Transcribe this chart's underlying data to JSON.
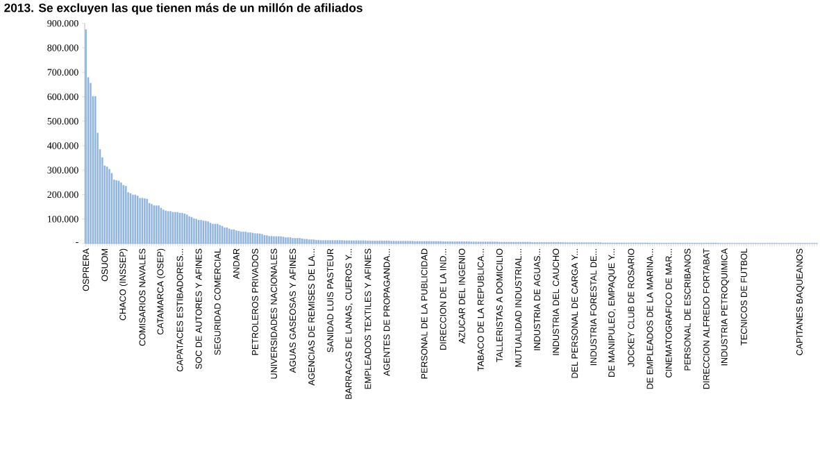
{
  "chart_data": {
    "type": "bar",
    "title": "2013. Se excluyen las que tienen más de un millón de afiliados",
    "categories": [
      "OSPRERA",
      null,
      null,
      null,
      null,
      null,
      null,
      null,
      "OSUOM",
      null,
      null,
      null,
      null,
      null,
      null,
      null,
      "CHACO (INSSEP)",
      null,
      null,
      null,
      null,
      null,
      null,
      null,
      "COMISARIOS NAVALES",
      null,
      null,
      null,
      null,
      null,
      null,
      null,
      "CATAMARCA (OSEP)",
      null,
      null,
      null,
      null,
      null,
      null,
      null,
      "CAPATACES  ESTIBADORES...",
      null,
      null,
      null,
      null,
      null,
      null,
      null,
      "SOC DE AUTORES Y AFINES",
      null,
      null,
      null,
      null,
      null,
      null,
      null,
      "SEGURIDAD COMERCIAL",
      null,
      null,
      null,
      null,
      null,
      null,
      null,
      "ANDAR",
      null,
      null,
      null,
      null,
      null,
      null,
      null,
      "PETROLEROS PRIVADOS",
      null,
      null,
      null,
      null,
      null,
      null,
      null,
      "UNIVERSIDADES NACIONALES",
      null,
      null,
      null,
      null,
      null,
      null,
      null,
      "AGUAS GASEOSAS Y AFINES",
      null,
      null,
      null,
      null,
      null,
      null,
      null,
      "AGENCIAS DE REMISES DE LA...",
      null,
      null,
      null,
      null,
      null,
      null,
      null,
      "SANIDAD LUIS PASTEUR",
      null,
      null,
      null,
      null,
      null,
      null,
      null,
      "BARRACAS DE LANAS, CUEROS Y...",
      null,
      null,
      null,
      null,
      null,
      null,
      null,
      "EMPLEADOS TEXTILES Y AFINES",
      null,
      null,
      null,
      null,
      null,
      null,
      null,
      "AGENTES DE PROPAGANDA...",
      null,
      null,
      null,
      null,
      null,
      null,
      null,
      null,
      null,
      null,
      null,
      null,
      null,
      null,
      null,
      "PERSONAL DE LA PUBLICIDAD",
      null,
      null,
      null,
      null,
      null,
      null,
      null,
      "DIRECCION DE LA IND...",
      null,
      null,
      null,
      null,
      null,
      null,
      null,
      "AZUCAR DEL INGENIO",
      null,
      null,
      null,
      null,
      null,
      null,
      null,
      "TABACO DE LA REPUBLICA...",
      null,
      null,
      null,
      null,
      null,
      null,
      null,
      "TALLERISTAS A DOMICILIO",
      null,
      null,
      null,
      null,
      null,
      null,
      null,
      "MUTUALIDAD INDUSTRIAL...",
      null,
      null,
      null,
      null,
      null,
      null,
      null,
      "INDUSTRIA DE  AGUAS...",
      null,
      null,
      null,
      null,
      null,
      null,
      null,
      "INDUSTRIA DEL  CAUCHO",
      null,
      null,
      null,
      null,
      null,
      null,
      null,
      "DEL PERSONAL DE  CARGA Y...",
      null,
      null,
      null,
      null,
      null,
      null,
      null,
      "INDUSTRIA FORESTAL DE...",
      null,
      null,
      null,
      null,
      null,
      null,
      null,
      "DE MANIPULEO, EMPAQUE Y...",
      null,
      null,
      null,
      null,
      null,
      null,
      null,
      "JOCKEY CLUB DE ROSARIO",
      null,
      null,
      null,
      null,
      null,
      null,
      null,
      "DE EMPLEADOS DE LA MARINA...",
      null,
      null,
      null,
      null,
      null,
      null,
      null,
      "CINEMATOGRAFICO DE MAR...",
      null,
      null,
      null,
      null,
      null,
      null,
      null,
      "PERSONAL DE ESCRIBANOS",
      null,
      null,
      null,
      null,
      null,
      null,
      null,
      "DIRECCION ALFREDO FORTABAT",
      null,
      null,
      null,
      null,
      null,
      null,
      null,
      "INDUSTRIA PETROQUIMICA",
      null,
      null,
      null,
      null,
      null,
      null,
      null,
      "TECNICOS DE FUTBOL",
      null,
      null,
      null,
      null,
      null,
      null,
      null,
      null,
      null,
      null,
      null,
      null,
      null,
      null,
      null,
      null,
      null,
      null,
      null,
      null,
      null,
      null,
      null,
      "CAPITANES BAQUEANOS",
      null,
      null,
      null,
      null,
      null,
      null,
      null
    ],
    "values": [
      875000,
      679000,
      656000,
      602000,
      602000,
      452000,
      385000,
      352000,
      318000,
      314000,
      304000,
      287000,
      261000,
      258000,
      256000,
      249000,
      238000,
      235000,
      209000,
      205000,
      199000,
      199000,
      195000,
      186000,
      186000,
      184000,
      182000,
      165000,
      161000,
      155000,
      155000,
      155000,
      145000,
      138000,
      134000,
      132000,
      132000,
      128000,
      128000,
      128000,
      125000,
      125000,
      122000,
      118000,
      111000,
      108000,
      102000,
      100000,
      96000,
      96000,
      93000,
      92000,
      90000,
      84000,
      80000,
      80000,
      80000,
      75000,
      71000,
      65000,
      65000,
      60000,
      57000,
      57000,
      53000,
      51000,
      48000,
      48000,
      48000,
      45000,
      45000,
      43000,
      41000,
      41000,
      40000,
      38000,
      34000,
      33000,
      30000,
      30000,
      29000,
      29000,
      29000,
      29000,
      27000,
      25000,
      25000,
      25000,
      22000,
      22000,
      22000,
      22000,
      20000,
      18000,
      18000,
      16000,
      16000,
      16000,
      14000,
      14000,
      13000,
      13000,
      13000,
      13000,
      13000,
      13000,
      13000,
      13000,
      13000,
      13000,
      12000,
      12000,
      12000,
      12000,
      12000,
      12000,
      12000,
      12000,
      12000,
      12000,
      11000,
      11000,
      11000,
      11000,
      11000,
      11000,
      11000,
      11000,
      11000,
      11000,
      10000,
      10000,
      10000,
      10000,
      10000,
      10000,
      10000,
      10000,
      10000,
      10000,
      9000,
      9000,
      9000,
      9000,
      9000,
      9000,
      9000,
      9000,
      9000,
      9000,
      9000,
      9000,
      8000,
      8000,
      8000,
      8000,
      8000,
      8000,
      8000,
      8000,
      8000,
      8000,
      8000,
      8000,
      7000,
      7000,
      7000,
      7000,
      7000,
      7000,
      7000,
      7000,
      7000,
      7000,
      7000,
      7000,
      6000,
      6000,
      6000,
      6000,
      6000,
      6000,
      6000,
      6000,
      6000,
      6000,
      6000,
      6000,
      6000,
      6000,
      5000,
      5000,
      5000,
      5000,
      5000,
      5000,
      5000,
      5000,
      5000,
      5000,
      5000,
      5000,
      5000,
      5000,
      4000,
      4000,
      4000,
      4000,
      4000,
      4000,
      4000,
      4000,
      4000,
      4000,
      4000,
      4000,
      4000,
      4000,
      4000,
      4000,
      3000,
      3000,
      3000,
      3000,
      3000,
      3000,
      3000,
      3000,
      3000,
      3000,
      3000,
      3000,
      3000,
      3000,
      3000,
      3000,
      3000,
      3000,
      3000,
      3000,
      2000,
      2000,
      2000,
      2000,
      2000,
      2000,
      2000,
      2000,
      2000,
      2000,
      2000,
      2000,
      2000,
      2000,
      2000,
      2000,
      2000,
      2000,
      2000,
      2000,
      2000,
      2000,
      2000,
      2000,
      2000,
      2000,
      2000,
      2000,
      2000,
      2000,
      1000,
      1000,
      1000,
      1000,
      1000,
      1000,
      1000,
      1000,
      1000,
      1000,
      1000,
      1000,
      1000,
      1000,
      1000,
      1000,
      1000,
      1000,
      1000,
      1000,
      1000,
      1000,
      1000,
      1000,
      1000,
      1000,
      1000,
      1000,
      1000,
      1000,
      1000,
      1000,
      1000,
      1000,
      1000,
      1000,
      1000,
      1000,
      1000,
      1000,
      1000,
      1000
    ],
    "color": "#8fb4de",
    "ylim": [
      0,
      900000
    ],
    "yticks": [
      {
        "value": 0,
        "label": "-"
      },
      {
        "value": 100000,
        "label": "100.000"
      },
      {
        "value": 200000,
        "label": "200.000"
      },
      {
        "value": 300000,
        "label": "300.000"
      },
      {
        "value": 400000,
        "label": "400.000"
      },
      {
        "value": 500000,
        "label": "500.000"
      },
      {
        "value": 600000,
        "label": "600.000"
      },
      {
        "value": 700000,
        "label": "700.000"
      },
      {
        "value": 800000,
        "label": "800.000"
      },
      {
        "value": 900000,
        "label": "900.000"
      }
    ]
  }
}
